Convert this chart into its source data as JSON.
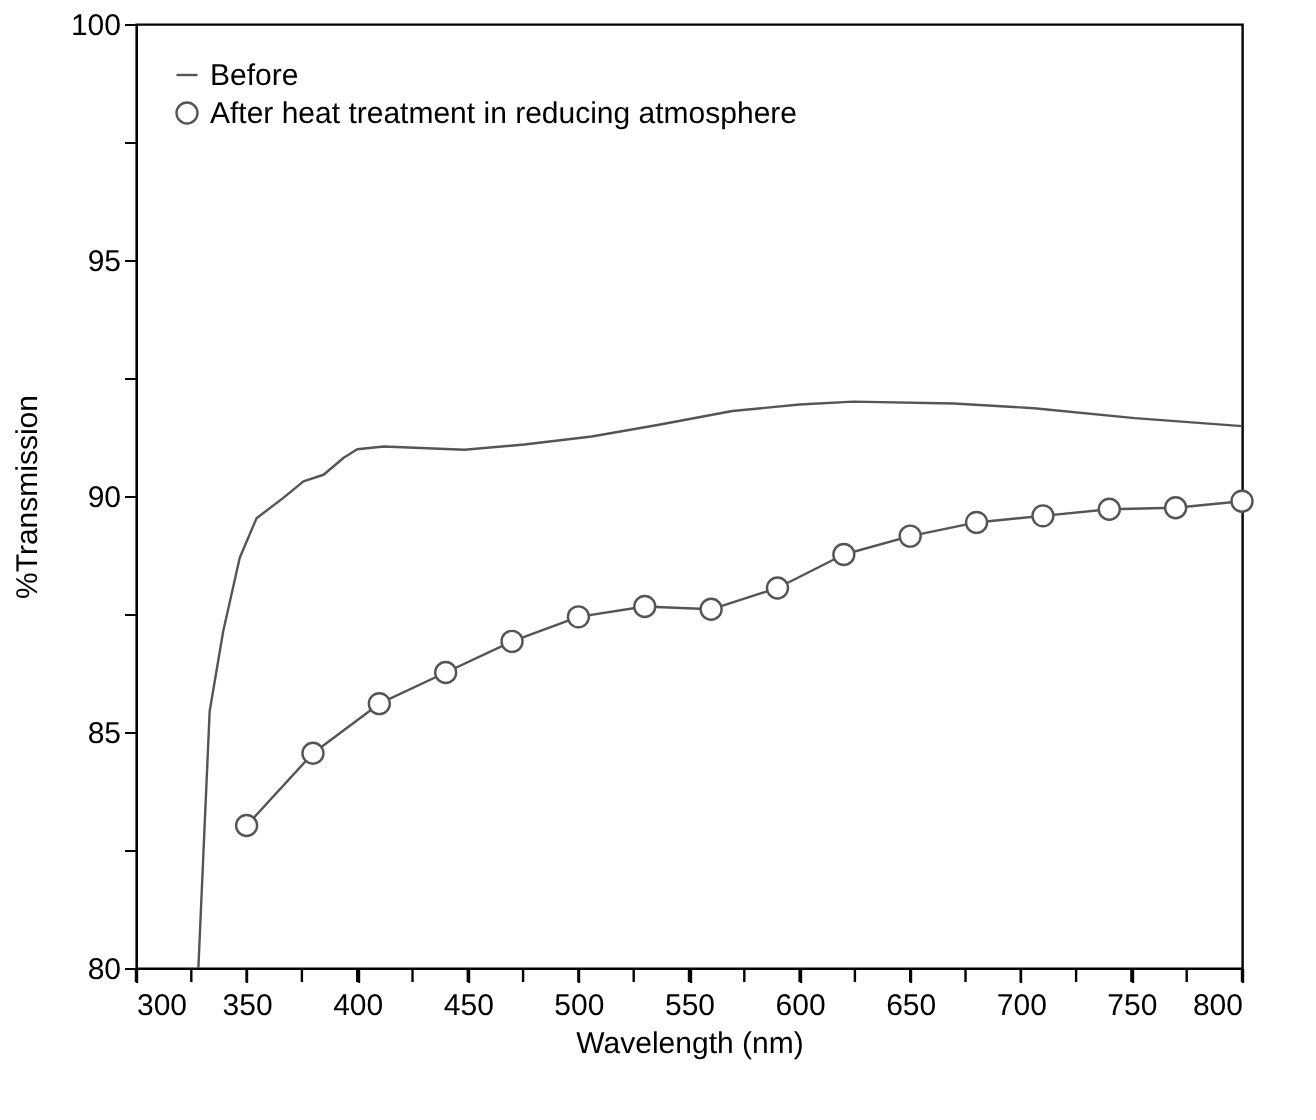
{
  "chart_data": {
    "type": "line",
    "xlabel": "Wavelength (nm)",
    "ylabel": "%Transmission",
    "xlim": [
      300,
      800
    ],
    "ylim": [
      80,
      100
    ],
    "xticks": [
      300,
      {
        "value": 325,
        "label": null
      },
      350,
      {
        "value": 375,
        "label": null
      },
      400,
      {
        "value": 425,
        "label": null
      },
      450,
      {
        "value": 475,
        "label": null
      },
      500,
      {
        "value": 525,
        "label": null
      },
      550,
      {
        "value": 575,
        "label": null
      },
      600,
      {
        "value": 625,
        "label": null
      },
      650,
      {
        "value": 675,
        "label": null
      },
      700,
      {
        "value": 725,
        "label": null
      },
      750,
      {
        "value": 775,
        "label": null
      },
      800
    ],
    "yticks": [
      80,
      {
        "value": 82.5,
        "label": null
      },
      85,
      {
        "value": 87.5,
        "label": null
      },
      90,
      {
        "value": 92.5,
        "label": null
      },
      95,
      {
        "value": 97.5,
        "label": null
      },
      100
    ],
    "grid": false,
    "legend": "top left",
    "line_style": "solid",
    "series": [
      {
        "name": "Before",
        "color": "#555555",
        "marker": "none",
        "x": [
          328.2,
          333.3,
          339.4,
          346.9,
          354.5,
          366.6,
          375.7,
          384.8,
          393.9,
          400,
          412,
          448.5,
          475.6,
          506,
          536.4,
          569.6,
          600,
          624.2,
          669.7,
          706,
          751.5,
          800
        ],
        "values": [
          80,
          85.44,
          87.13,
          88.69,
          89.53,
          89.96,
          90.31,
          90.45,
          90.81,
          90.99,
          91.05,
          90.98,
          91.09,
          91.26,
          91.51,
          91.8,
          91.94,
          92.0,
          91.96,
          91.86,
          91.65,
          91.48
        ]
      },
      {
        "name": "After heat treatment in reducing atmosphere",
        "color": "#555555",
        "marker": "circle",
        "x": [
          350,
          380,
          410,
          440,
          470,
          500,
          530,
          560,
          590,
          620,
          650,
          680,
          710,
          740,
          770,
          800
        ],
        "values": [
          83.02,
          84.55,
          85.6,
          86.26,
          86.92,
          87.44,
          87.66,
          87.6,
          88.05,
          88.76,
          89.15,
          89.44,
          89.58,
          89.72,
          89.75,
          89.89
        ]
      }
    ]
  }
}
